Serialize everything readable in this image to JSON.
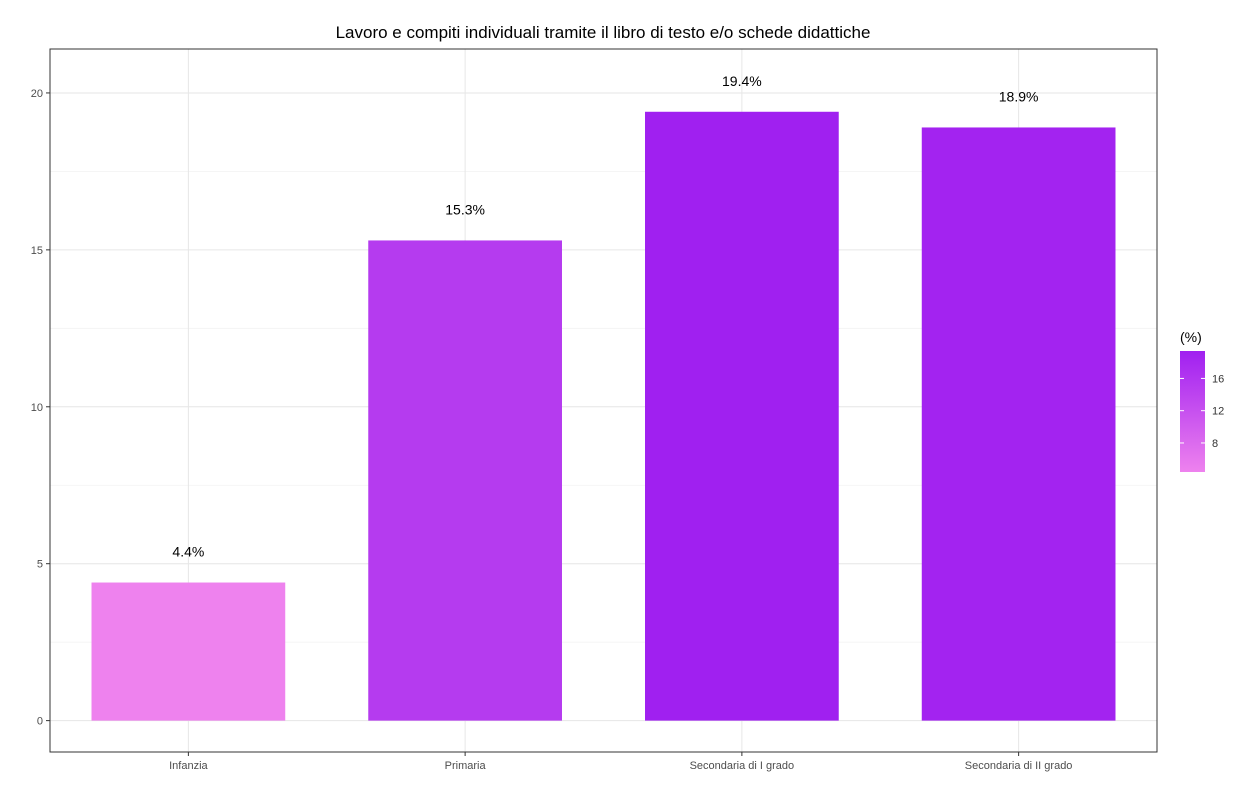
{
  "chart_data": {
    "type": "bar",
    "title": "Lavoro e compiti individuali tramite il libro di testo e/o schede didattiche",
    "categories": [
      "Infanzia",
      "Primaria",
      "Secondaria di I grado",
      "Secondaria di II grado"
    ],
    "values": [
      4.4,
      15.3,
      19.4,
      18.9
    ],
    "data_labels": [
      "4.4%",
      "15.3%",
      "19.4%",
      "18.9%"
    ],
    "xlabel": "",
    "ylabel": "",
    "ylim": [
      -1,
      21.4
    ],
    "y_ticks": [
      0,
      5,
      10,
      15,
      20
    ],
    "grid": true,
    "legend": {
      "title": "(%)",
      "placement": "right",
      "type": "colorbar",
      "range": [
        4.4,
        19.4
      ],
      "ticks": [
        8,
        12,
        16
      ],
      "color_low": "#ee82ee",
      "color_high": "#a020f0"
    }
  }
}
